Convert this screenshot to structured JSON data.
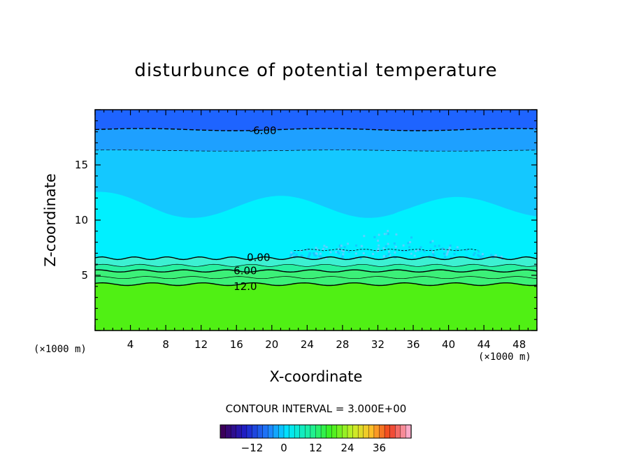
{
  "chart_data": {
    "type": "contour",
    "title": "disturbunce of potential temperature",
    "xlabel": "X-coordinate",
    "ylabel": "Z-coordinate",
    "x_unit": "(×1000 m)",
    "xlim": [
      0,
      50
    ],
    "ylim": [
      0,
      20
    ],
    "x_ticks": [
      4,
      8,
      12,
      16,
      20,
      24,
      28,
      32,
      36,
      40,
      44,
      48
    ],
    "y_ticks": [
      5,
      10,
      15
    ],
    "contour_interval_text": "CONTOUR INTERVAL = 3.000E+00",
    "contour_labels": [
      {
        "text": "-6.00",
        "x": 19,
        "z": 18.1
      },
      {
        "text": "0.00",
        "x": 18.5,
        "z": 6.6
      },
      {
        "text": "6.00",
        "x": 17,
        "z": 5.4
      },
      {
        "text": "12.0",
        "x": 17,
        "z": 4.0
      }
    ],
    "colorbar": {
      "min": -24,
      "max": 48,
      "ticks": [
        -12,
        0,
        12,
        24,
        36
      ],
      "tick_labels": [
        "−12",
        "0",
        "12",
        "24",
        "36"
      ]
    },
    "field_bands_top_down": [
      {
        "z_range": [
          18,
          19.8
        ],
        "value": "≈ -9",
        "color": "#1e64ff"
      },
      {
        "z_range": [
          16.2,
          18
        ],
        "value": "≈ -6",
        "color": "#1ea0ff"
      },
      {
        "z_range": [
          11,
          16.2
        ],
        "value": "≈ -3",
        "color": "#14c8ff"
      },
      {
        "z_range": [
          6.7,
          11
        ],
        "value": "≈ 0",
        "color": "#00f0ff"
      },
      {
        "z_range": [
          4.2,
          6.7
        ],
        "value": "≈ 3 to 9",
        "color": "#1ef0a0"
      },
      {
        "z_range": [
          0,
          4.2
        ],
        "value": "≈ 12 to 15",
        "color": "#50f014"
      }
    ]
  }
}
